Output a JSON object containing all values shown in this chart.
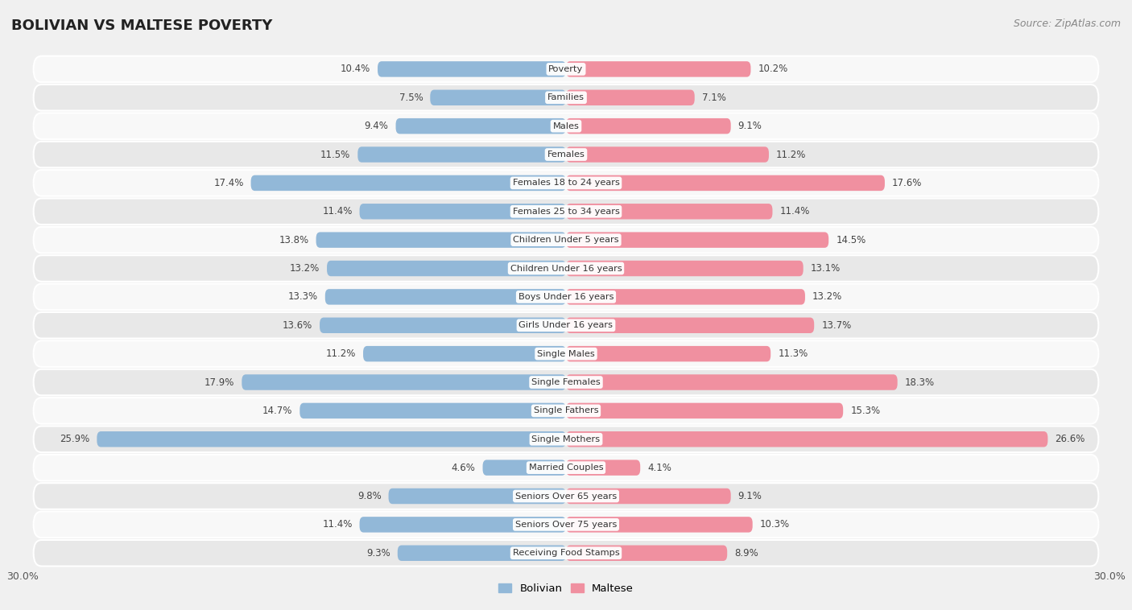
{
  "title": "BOLIVIAN VS MALTESE POVERTY",
  "source": "Source: ZipAtlas.com",
  "categories": [
    "Poverty",
    "Families",
    "Males",
    "Females",
    "Females 18 to 24 years",
    "Females 25 to 34 years",
    "Children Under 5 years",
    "Children Under 16 years",
    "Boys Under 16 years",
    "Girls Under 16 years",
    "Single Males",
    "Single Females",
    "Single Fathers",
    "Single Mothers",
    "Married Couples",
    "Seniors Over 65 years",
    "Seniors Over 75 years",
    "Receiving Food Stamps"
  ],
  "bolivian": [
    10.4,
    7.5,
    9.4,
    11.5,
    17.4,
    11.4,
    13.8,
    13.2,
    13.3,
    13.6,
    11.2,
    17.9,
    14.7,
    25.9,
    4.6,
    9.8,
    11.4,
    9.3
  ],
  "maltese": [
    10.2,
    7.1,
    9.1,
    11.2,
    17.6,
    11.4,
    14.5,
    13.1,
    13.2,
    13.7,
    11.3,
    18.3,
    15.3,
    26.6,
    4.1,
    9.1,
    10.3,
    8.9
  ],
  "bolivian_color": "#92b8d8",
  "maltese_color": "#f090a0",
  "background_color": "#f0f0f0",
  "row_bg_odd": "#e8e8e8",
  "row_bg_even": "#f8f8f8",
  "axis_max": 30.0,
  "legend_labels": [
    "Bolivian",
    "Maltese"
  ]
}
